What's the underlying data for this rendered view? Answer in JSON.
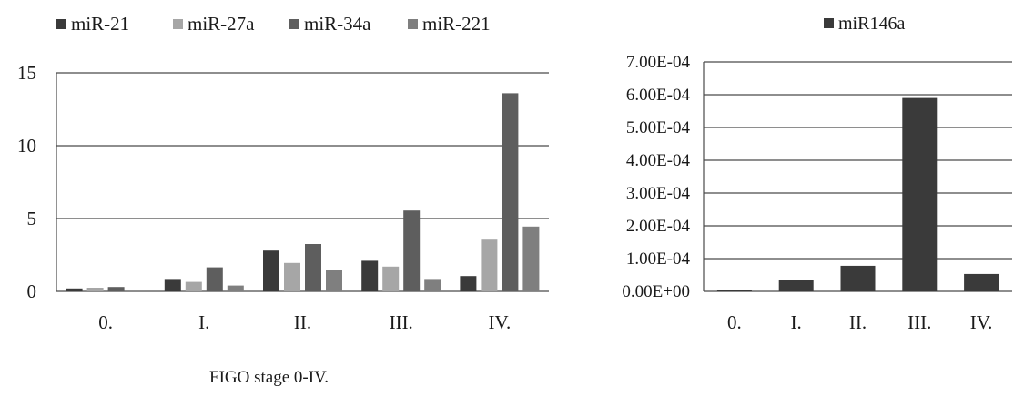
{
  "chart_data": [
    {
      "type": "bar",
      "categories": [
        "0.",
        "I.",
        "II.",
        "III.",
        "IV."
      ],
      "series": [
        {
          "name": "miR-21",
          "values": [
            0.2,
            0.85,
            2.8,
            2.1,
            1.05
          ],
          "color": "#3a3a3a"
        },
        {
          "name": "miR-27a",
          "values": [
            0.25,
            0.65,
            1.95,
            1.7,
            3.55
          ],
          "color": "#a6a6a6"
        },
        {
          "name": "miR-34a",
          "values": [
            0.3,
            1.65,
            3.25,
            5.55,
            13.6
          ],
          "color": "#5e5e5e"
        },
        {
          "name": "miR-221",
          "values": [
            0.05,
            0.4,
            1.45,
            0.85,
            4.45
          ],
          "color": "#7f7f7f"
        }
      ],
      "yticks": [
        "0",
        "5",
        "10",
        "15"
      ],
      "ylim": [
        0,
        15
      ],
      "xlabel": "FIGO stage 0-IV.",
      "legend": "top",
      "grid": true
    },
    {
      "type": "bar",
      "categories": [
        "0.",
        "I.",
        "II.",
        "III.",
        "IV."
      ],
      "series": [
        {
          "name": "miR146a",
          "values": [
            3e-06,
            3.5e-05,
            7.8e-05,
            0.00059,
            5.3e-05
          ],
          "color": "#3a3a3a"
        }
      ],
      "yticks": [
        "0.00E+00",
        "1.00E-04",
        "2.00E-04",
        "3.00E-04",
        "4.00E-04",
        "5.00E-04",
        "6.00E-04",
        "7.00E-04"
      ],
      "ylim": [
        0,
        0.0007
      ],
      "legend": "top",
      "grid": true
    }
  ]
}
